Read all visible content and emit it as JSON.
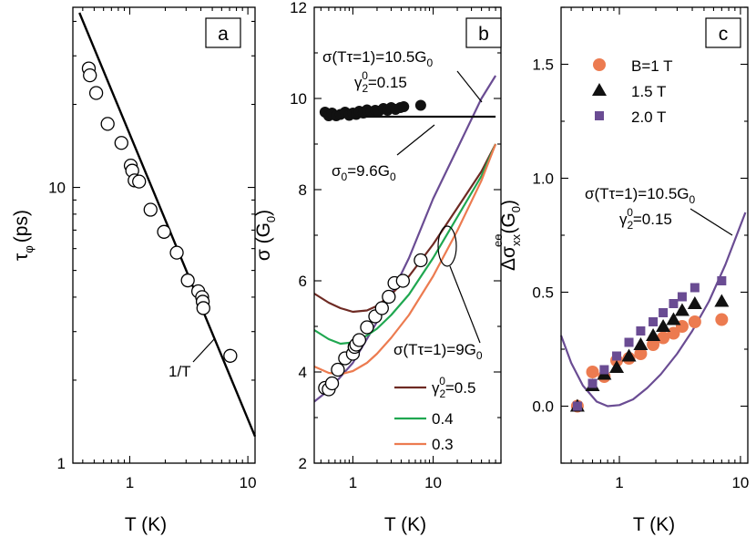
{
  "colors": {
    "axis": "#000000",
    "purple": "#6a4c93",
    "dark_red": "#6e2a23",
    "green": "#1fa750",
    "orange": "#ec7b50",
    "black": "#111111"
  },
  "chart_data": [
    {
      "id": "a",
      "type": "scatter",
      "panel_label": "a",
      "xlabel": "T (K)",
      "ylabel_main": "τ",
      "ylabel_sub": "φ",
      "ylabel_unit": "(ps)",
      "xscale": "log",
      "yscale": "log",
      "xlim": [
        0.33,
        11.5
      ],
      "ylim": [
        1,
        45
      ],
      "xticks": [
        {
          "v": 1,
          "label": "1"
        },
        {
          "v": 10,
          "label": "10"
        }
      ],
      "yticks": [
        {
          "v": 1,
          "label": "1"
        },
        {
          "v": 10,
          "label": "10"
        }
      ],
      "series": [
        {
          "name": "data",
          "kind": "points",
          "marker": "open-circle",
          "x": [
            0.45,
            0.46,
            0.52,
            0.65,
            0.85,
            1.02,
            1.05,
            1.1,
            1.2,
            1.5,
            1.95,
            2.5,
            3.1,
            3.8,
            4.1,
            4.15,
            4.2,
            7.1
          ],
          "y": [
            27,
            25.5,
            22,
            17,
            14.5,
            12,
            11.5,
            10.6,
            10.5,
            8.3,
            6.9,
            5.8,
            4.6,
            4.2,
            4.0,
            3.85,
            3.65,
            2.45
          ]
        },
        {
          "name": "1/T",
          "kind": "line",
          "x": [
            0.375,
            11.5
          ],
          "y": [
            43,
            1.25
          ]
        }
      ],
      "annotations": [
        {
          "text": "1/T"
        }
      ]
    },
    {
      "id": "b",
      "type": "line",
      "panel_label": "b",
      "xlabel": "T (K)",
      "ylabel_main": "σ (G",
      "ylabel_sub": "0",
      "ylabel_close": ")",
      "xscale": "log",
      "yscale": "linear",
      "xlim": [
        0.33,
        70
      ],
      "ylim": [
        2,
        12
      ],
      "xticks": [
        {
          "v": 1,
          "label": "1"
        },
        {
          "v": 10,
          "label": "10"
        }
      ],
      "yticks": [
        {
          "v": 2,
          "label": "2"
        },
        {
          "v": 4,
          "label": "4"
        },
        {
          "v": 6,
          "label": "6"
        },
        {
          "v": 8,
          "label": "8"
        },
        {
          "v": 10,
          "label": "10"
        },
        {
          "v": 12,
          "label": "12"
        }
      ],
      "series": [
        {
          "name": "σ(Tτ=1)=10.5G0, γ2^0=0.15",
          "kind": "line",
          "color": "purple",
          "x": [
            0.33,
            0.5,
            1,
            2,
            3,
            5,
            10,
            20,
            40,
            60
          ],
          "y": [
            3.35,
            3.6,
            4.2,
            5.1,
            5.7,
            6.5,
            7.8,
            8.9,
            10.0,
            10.5
          ]
        },
        {
          "name": "γ2^0=0.5",
          "kind": "line",
          "color": "dark_red",
          "x": [
            0.33,
            0.5,
            0.7,
            1,
            1.5,
            2,
            3,
            5,
            10,
            20,
            40,
            60
          ],
          "y": [
            5.72,
            5.52,
            5.4,
            5.32,
            5.35,
            5.45,
            5.7,
            6.1,
            6.8,
            7.6,
            8.4,
            9.0
          ]
        },
        {
          "name": "0.4",
          "kind": "line",
          "color": "green",
          "x": [
            0.33,
            0.5,
            0.7,
            1,
            1.5,
            2,
            3,
            5,
            10,
            20,
            40,
            60
          ],
          "y": [
            4.92,
            4.72,
            4.62,
            4.65,
            4.8,
            4.95,
            5.25,
            5.7,
            6.5,
            7.4,
            8.3,
            9.0
          ]
        },
        {
          "name": "0.3",
          "kind": "line",
          "color": "orange",
          "x": [
            0.33,
            0.5,
            0.7,
            1,
            1.5,
            2,
            3,
            5,
            10,
            20,
            40,
            60
          ],
          "y": [
            4.12,
            3.98,
            3.95,
            4.02,
            4.2,
            4.4,
            4.75,
            5.25,
            6.1,
            7.1,
            8.2,
            9.0
          ]
        },
        {
          "name": "σ0=9.6G0",
          "kind": "line",
          "color": "black",
          "x": [
            0.45,
            60
          ],
          "y": [
            9.6,
            9.6
          ]
        },
        {
          "name": "filled data",
          "kind": "points",
          "marker": "filled-circle",
          "color": "black",
          "x": [
            0.45,
            0.5,
            0.55,
            0.62,
            0.7,
            0.8,
            0.9,
            1.0,
            1.1,
            1.2,
            1.35,
            1.5,
            1.7,
            1.9,
            2.1,
            2.4,
            2.7,
            3.0,
            3.4,
            3.9,
            4.3,
            7.0
          ],
          "y": [
            9.7,
            9.62,
            9.68,
            9.62,
            9.65,
            9.7,
            9.63,
            9.68,
            9.65,
            9.72,
            9.68,
            9.75,
            9.7,
            9.74,
            9.72,
            9.78,
            9.74,
            9.8,
            9.76,
            9.8,
            9.82,
            9.85
          ]
        },
        {
          "name": "open data",
          "kind": "points",
          "marker": "open-circle",
          "x": [
            0.45,
            0.5,
            0.55,
            0.65,
            0.8,
            1.0,
            1.05,
            1.1,
            1.2,
            1.5,
            1.9,
            2.3,
            2.8,
            3.3,
            4.2,
            7.0
          ],
          "y": [
            3.65,
            3.62,
            3.75,
            4.05,
            4.3,
            4.4,
            4.55,
            4.6,
            4.7,
            4.98,
            5.22,
            5.4,
            5.65,
            5.95,
            6.0,
            6.45
          ]
        }
      ],
      "annotations": [
        {
          "text": "σ(Tτ=1)=10.5G",
          "sub": "0"
        },
        {
          "text": "γ",
          "sub": "2",
          "sup": "0",
          "rest": "=0.15"
        },
        {
          "text": "σ",
          "sub": "0",
          "rest": "=9.6G",
          "sub2": "0"
        },
        {
          "text": "σ(Tτ=1)=9G",
          "sub": "0"
        }
      ],
      "legend": [
        {
          "color": "dark_red",
          "label": "γ",
          "sub": "2",
          "sup": "0",
          "rest": "=0.5"
        },
        {
          "color": "green",
          "label": "0.4"
        },
        {
          "color": "orange",
          "label": "0.3"
        }
      ]
    },
    {
      "id": "c",
      "type": "scatter",
      "panel_label": "c",
      "xlabel": "T (K)",
      "ylabel_main": "Δσ",
      "ylabel_sub": "xx",
      "ylabel_sup": "ee",
      "ylabel_unit": "(G",
      "ylabel_unit_sub": "0",
      "ylabel_close": ")",
      "xscale": "log",
      "yscale": "linear",
      "xlim": [
        0.33,
        11.5
      ],
      "ylim": [
        -0.25,
        1.75
      ],
      "xticks": [
        {
          "v": 1,
          "label": "1"
        },
        {
          "v": 10,
          "label": "10"
        }
      ],
      "yticks": [
        {
          "v": 0,
          "label": "0.0"
        },
        {
          "v": 0.5,
          "label": "0.5"
        },
        {
          "v": 1.0,
          "label": "1.0"
        },
        {
          "v": 1.5,
          "label": "1.5"
        }
      ],
      "series": [
        {
          "name": "B=1 T",
          "kind": "points",
          "marker": "circle",
          "color": "orange",
          "x": [
            0.45,
            0.6,
            0.75,
            0.95,
            1.2,
            1.5,
            1.9,
            2.3,
            2.8,
            3.3,
            4.2,
            7.0
          ],
          "y": [
            0.0,
            0.15,
            0.13,
            0.2,
            0.21,
            0.23,
            0.27,
            0.3,
            0.32,
            0.35,
            0.37,
            0.38
          ]
        },
        {
          "name": "1.5 T",
          "kind": "points",
          "marker": "triangle",
          "color": "black",
          "x": [
            0.45,
            0.6,
            0.75,
            0.95,
            1.2,
            1.5,
            1.9,
            2.3,
            2.8,
            3.3,
            4.2,
            7.0
          ],
          "y": [
            0.0,
            0.09,
            0.14,
            0.17,
            0.22,
            0.27,
            0.31,
            0.35,
            0.38,
            0.42,
            0.45,
            0.46
          ]
        },
        {
          "name": "2.0 T",
          "kind": "points",
          "marker": "square",
          "color": "purple",
          "x": [
            0.45,
            0.6,
            0.75,
            0.95,
            1.2,
            1.5,
            1.9,
            2.3,
            2.8,
            3.3,
            4.2,
            7.0
          ],
          "y": [
            0.0,
            0.1,
            0.16,
            0.22,
            0.28,
            0.33,
            0.37,
            0.41,
            0.45,
            0.48,
            0.52,
            0.55
          ]
        },
        {
          "name": "σ(Tτ=1)=10.5G0 theory",
          "kind": "line",
          "color": "purple",
          "x": [
            0.33,
            0.4,
            0.5,
            0.65,
            0.8,
            1.0,
            1.3,
            1.7,
            2.2,
            3.0,
            4.0,
            5.5,
            7.5,
            11.0
          ],
          "y": [
            0.31,
            0.19,
            0.09,
            0.02,
            0.0,
            0.005,
            0.03,
            0.08,
            0.14,
            0.23,
            0.33,
            0.46,
            0.62,
            0.85
          ]
        }
      ],
      "annotations": [
        {
          "text": "σ(Tτ=1)=10.5G",
          "sub": "0"
        },
        {
          "text": "γ",
          "sub": "2",
          "sup": "0",
          "rest": "=0.15"
        }
      ],
      "legend": [
        {
          "marker": "circle",
          "color": "orange",
          "label": "B=1 T"
        },
        {
          "marker": "triangle",
          "color": "black",
          "label": "1.5 T"
        },
        {
          "marker": "square",
          "color": "purple",
          "label": "2.0 T"
        }
      ]
    }
  ]
}
